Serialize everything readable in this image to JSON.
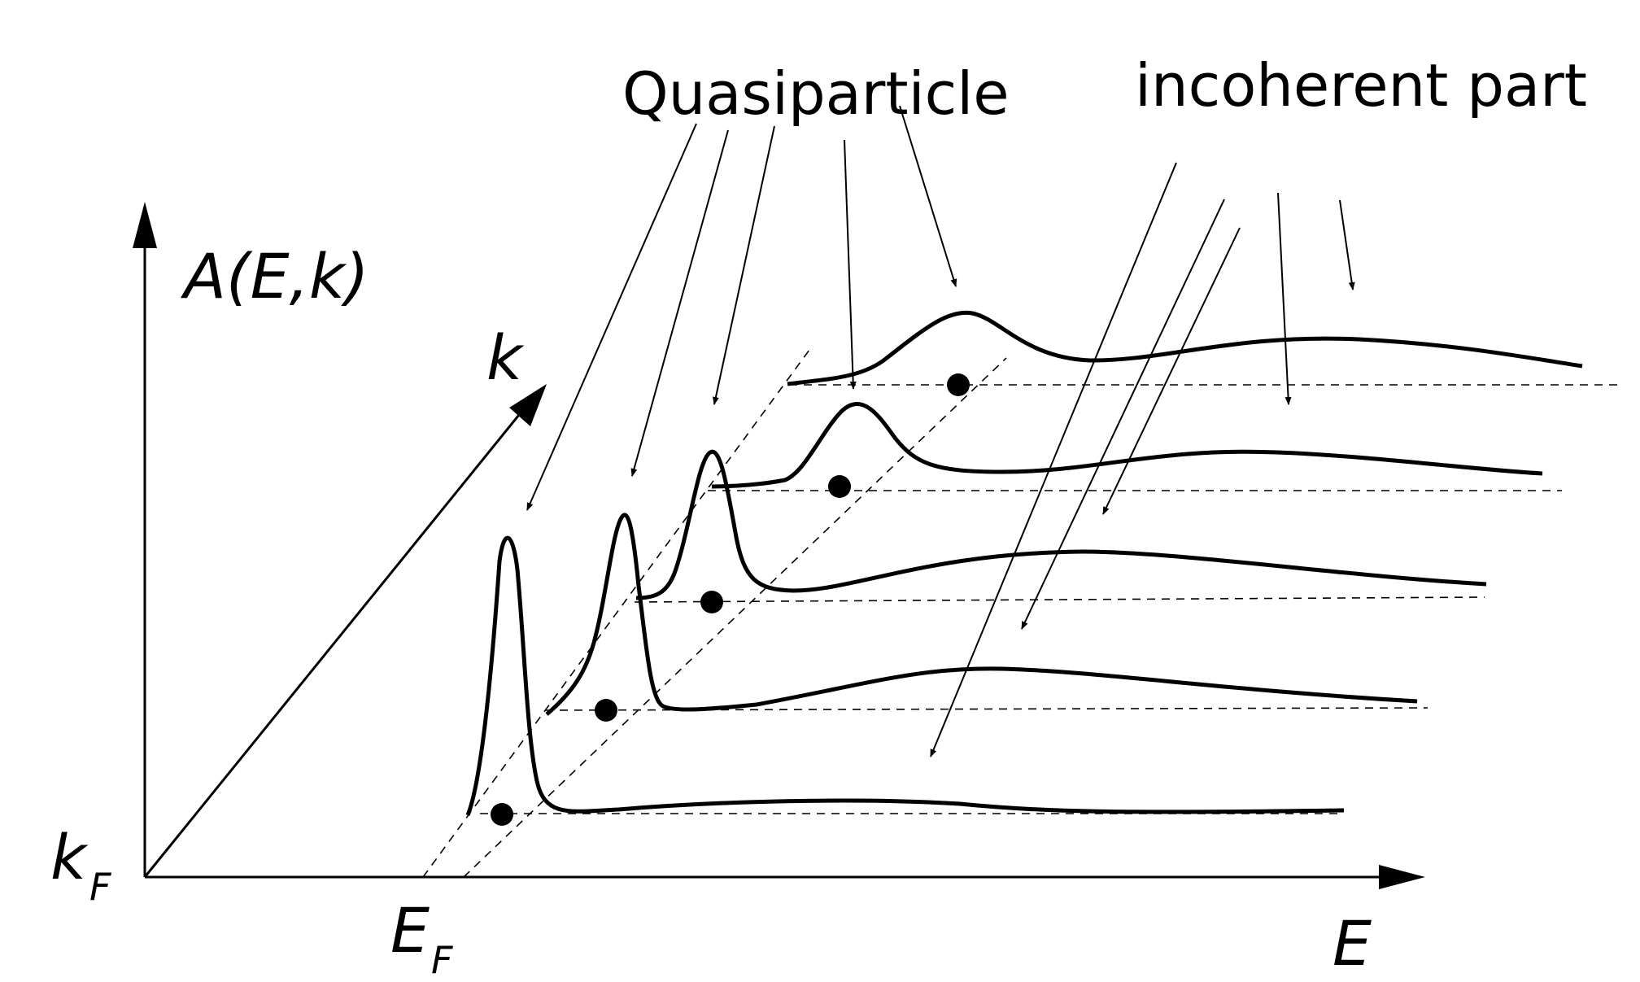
{
  "labels": {
    "quasiparticle": "Quasiparticle",
    "incoherent": "incoherent part",
    "y_axis": "A(E,k)",
    "k_axis": "k",
    "e_axis": "E",
    "kf_main": "k",
    "kf_sub": "F",
    "ef_main": "E",
    "ef_sub": "F"
  },
  "spectra": [
    {
      "index": 1,
      "quasiparticle_peak": "sharp",
      "incoherent_hump": "broad"
    },
    {
      "index": 2,
      "quasiparticle_peak": "sharp",
      "incoherent_hump": "broad"
    },
    {
      "index": 3,
      "quasiparticle_peak": "sharp",
      "incoherent_hump": "broad"
    },
    {
      "index": 4,
      "quasiparticle_peak": "broadened",
      "incoherent_hump": "broad"
    },
    {
      "index": 5,
      "quasiparticle_peak": "broadened",
      "incoherent_hump": "broad"
    }
  ]
}
